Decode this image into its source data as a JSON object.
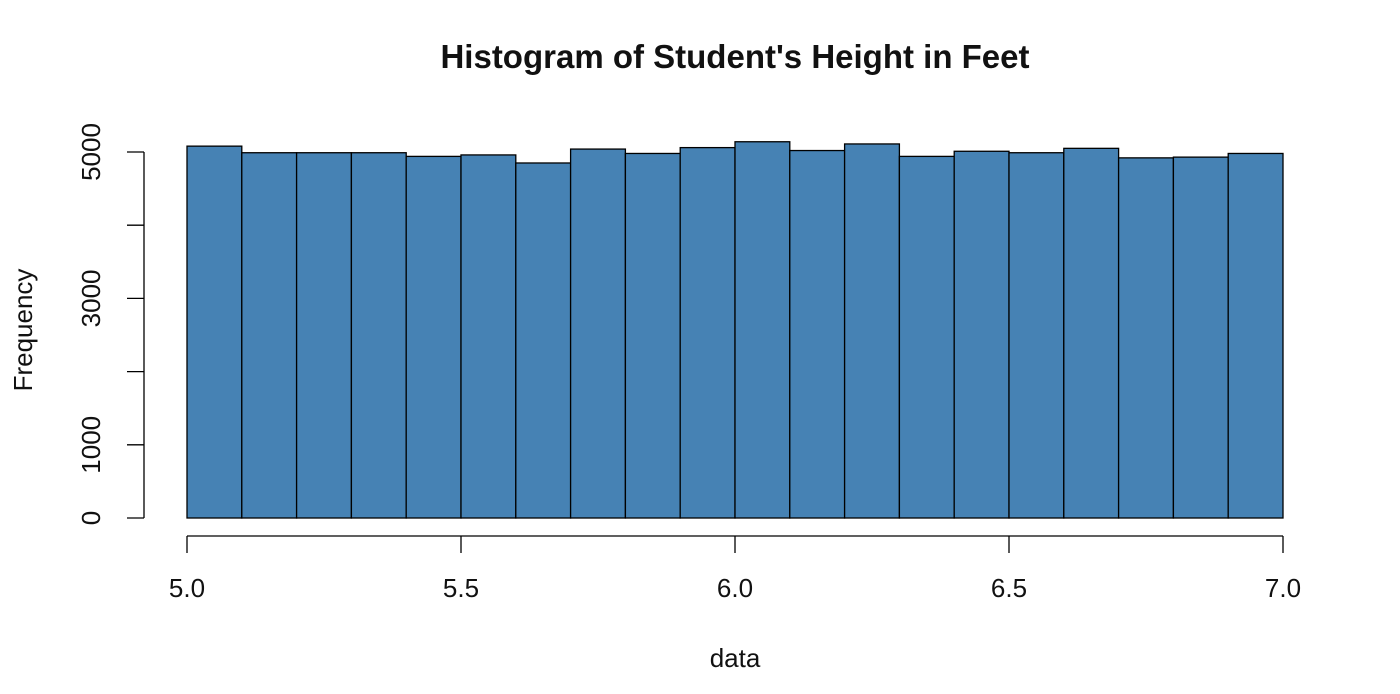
{
  "chart_data": {
    "type": "bar",
    "title": "Histogram of Student's Height in Feet",
    "xlabel": "data",
    "ylabel": "Frequency",
    "bin_edges": [
      5.0,
      5.1,
      5.2,
      5.3,
      5.4,
      5.5,
      5.6,
      5.7,
      5.8,
      5.9,
      6.0,
      6.1,
      6.2,
      6.3,
      6.4,
      6.5,
      6.6,
      6.7,
      6.8,
      6.9,
      7.0
    ],
    "values": [
      5080,
      4990,
      4990,
      4990,
      4940,
      4960,
      4850,
      5040,
      4980,
      5060,
      5140,
      5020,
      5110,
      4940,
      5010,
      4990,
      5050,
      4920,
      4930,
      4980
    ],
    "xlim": [
      5.0,
      7.0
    ],
    "ylim": [
      0,
      5000
    ],
    "x_ticks": [
      5.0,
      5.5,
      6.0,
      6.5,
      7.0
    ],
    "x_tick_labels": [
      "5.0",
      "5.5",
      "6.0",
      "6.5",
      "7.0"
    ],
    "y_ticks": [
      0,
      1000,
      2000,
      3000,
      4000,
      5000
    ],
    "y_tick_labels": [
      "0",
      "1000",
      "",
      "3000",
      "",
      "5000"
    ],
    "bar_color": "#4682B4",
    "grid": false,
    "legend": false
  }
}
